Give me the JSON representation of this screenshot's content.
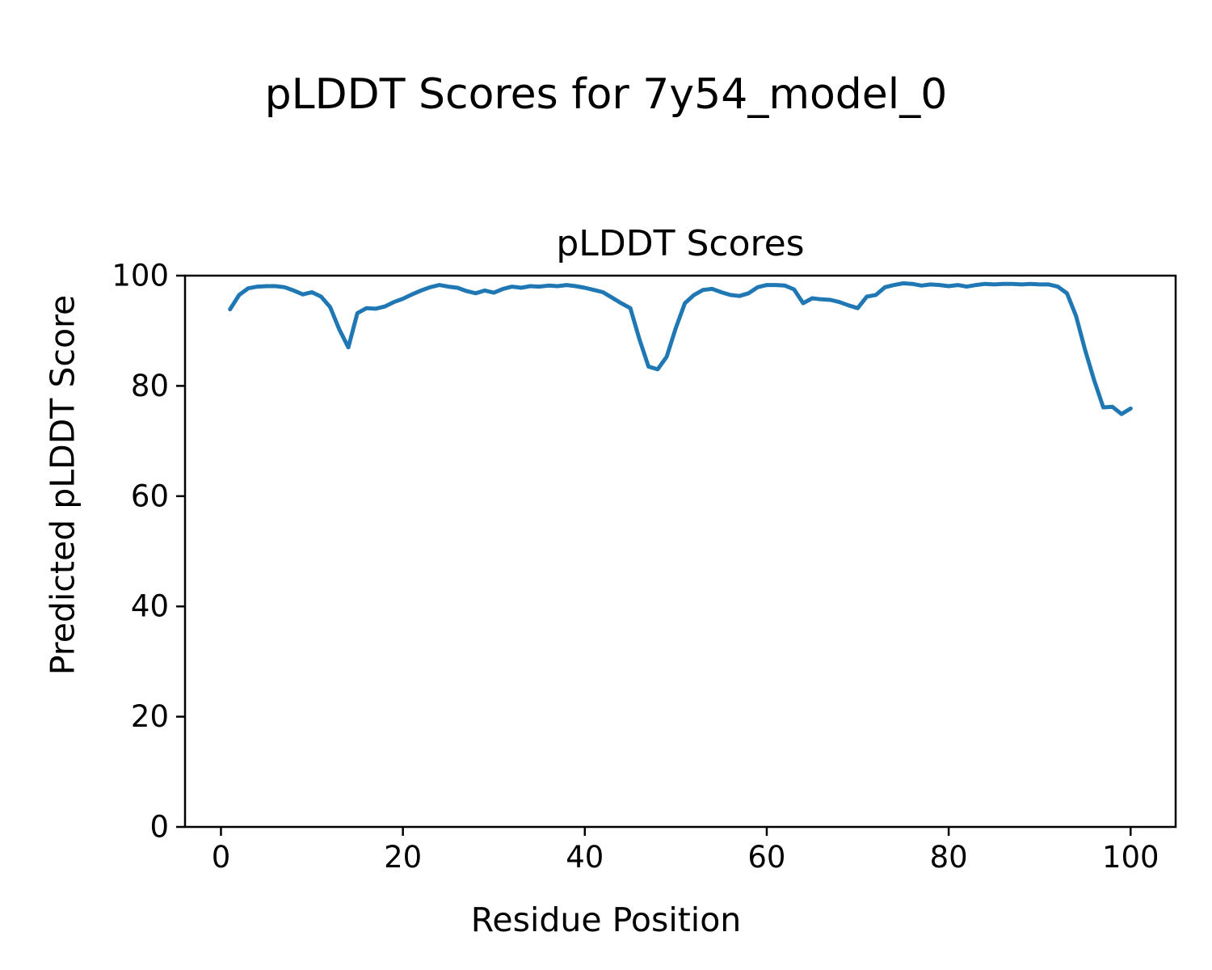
{
  "figure": {
    "suptitle": "pLDDT Scores for 7y54_model_0",
    "background_color": "#ffffff",
    "axis_color": "#000000"
  },
  "chart_data": {
    "type": "line",
    "title": "pLDDT Scores",
    "xlabel": "Residue Position",
    "ylabel": "Predicted pLDDT Score",
    "legend": "none",
    "grid": false,
    "line_color": "#1f77b4",
    "xlim": [
      -3.95,
      104.95
    ],
    "ylim": [
      0,
      100
    ],
    "x_ticks": [
      0,
      20,
      40,
      60,
      80,
      100
    ],
    "y_ticks": [
      0,
      20,
      40,
      60,
      80,
      100
    ],
    "x": [
      1,
      2,
      3,
      4,
      5,
      6,
      7,
      8,
      9,
      10,
      11,
      12,
      13,
      14,
      15,
      16,
      17,
      18,
      19,
      20,
      21,
      22,
      23,
      24,
      25,
      26,
      27,
      28,
      29,
      30,
      31,
      32,
      33,
      34,
      35,
      36,
      37,
      38,
      39,
      40,
      41,
      42,
      43,
      44,
      45,
      46,
      47,
      48,
      49,
      50,
      51,
      52,
      53,
      54,
      55,
      56,
      57,
      58,
      59,
      60,
      61,
      62,
      63,
      64,
      65,
      66,
      67,
      68,
      69,
      70,
      71,
      72,
      73,
      74,
      75,
      76,
      77,
      78,
      79,
      80,
      81,
      82,
      83,
      84,
      85,
      86,
      87,
      88,
      89,
      90,
      91,
      92,
      93,
      94,
      95,
      96,
      97,
      98,
      99,
      100
    ],
    "series": [
      {
        "name": "pLDDT",
        "values": [
          93.9,
          96.5,
          97.7,
          98.0,
          98.1,
          98.1,
          97.9,
          97.3,
          96.6,
          97.0,
          96.2,
          94.3,
          90.3,
          87.0,
          93.2,
          94.1,
          94.0,
          94.4,
          95.2,
          95.8,
          96.6,
          97.3,
          97.9,
          98.3,
          98.0,
          97.8,
          97.2,
          96.8,
          97.3,
          96.9,
          97.6,
          98.0,
          97.8,
          98.1,
          98.0,
          98.2,
          98.1,
          98.3,
          98.1,
          97.8,
          97.4,
          97.0,
          96.0,
          95.0,
          94.1,
          88.5,
          83.5,
          83.0,
          85.3,
          90.5,
          95.0,
          96.5,
          97.4,
          97.6,
          97.0,
          96.5,
          96.3,
          96.8,
          97.9,
          98.3,
          98.3,
          98.2,
          97.5,
          95.0,
          95.9,
          95.7,
          95.6,
          95.2,
          94.6,
          94.1,
          96.2,
          96.5,
          97.9,
          98.3,
          98.6,
          98.5,
          98.2,
          98.4,
          98.3,
          98.1,
          98.3,
          98.0,
          98.3,
          98.5,
          98.4,
          98.5,
          98.5,
          98.4,
          98.5,
          98.4,
          98.4,
          98.0,
          96.8,
          92.7,
          86.5,
          81.0,
          76.1,
          76.2,
          74.9,
          75.9
        ]
      }
    ]
  }
}
